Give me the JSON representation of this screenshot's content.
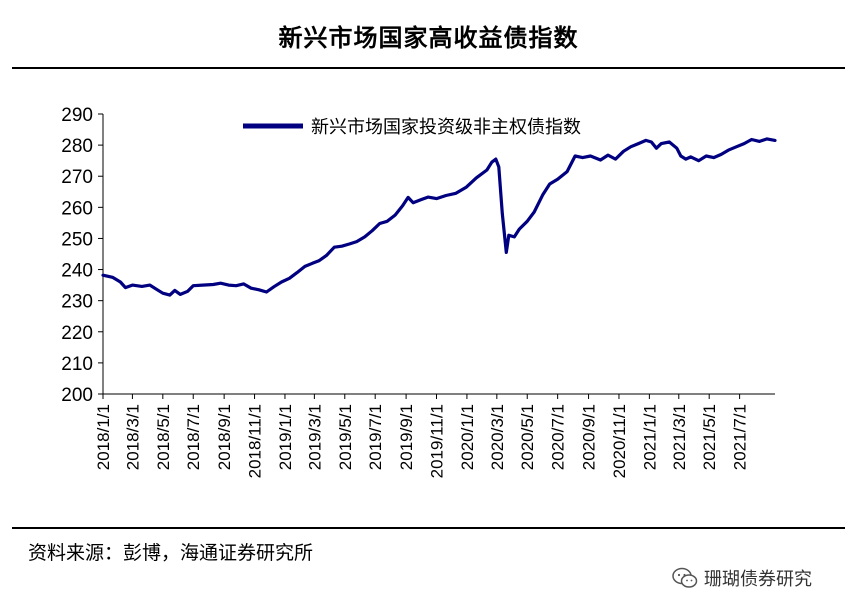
{
  "header": {
    "title": "新兴市场国家高收益债指数"
  },
  "footer": {
    "source": "资料来源：彭博，海通证券研究所"
  },
  "watermark": {
    "text": "珊瑚债券研究",
    "icon": "wechat-icon"
  },
  "chart_data": {
    "type": "line",
    "title": "新兴市场国家高收益债指数",
    "ylim": [
      200,
      290
    ],
    "yticks": [
      200,
      210,
      220,
      230,
      240,
      250,
      260,
      270,
      280,
      290
    ],
    "xlim": [
      "2018-01-01",
      "2021-09-10"
    ],
    "xticks": [
      "2018/1/1",
      "2018/3/1",
      "2018/5/1",
      "2018/7/1",
      "2018/9/1",
      "2018/11/1",
      "2019/1/1",
      "2019/3/1",
      "2019/5/1",
      "2019/7/1",
      "2019/9/1",
      "2019/11/1",
      "2020/1/1",
      "2020/3/1",
      "2020/5/1",
      "2020/7/1",
      "2020/9/1",
      "2020/11/1",
      "2021/1/1",
      "2021/3/1",
      "2021/5/1",
      "2021/7/1"
    ],
    "legend": "top-center",
    "grid": false,
    "colors": {
      "line": "#000080",
      "axis": "#000000"
    },
    "series": [
      {
        "name": "新兴市场国家投资级非主权债指数",
        "points": [
          [
            "2018-01-01",
            238.2
          ],
          [
            "2018-01-20",
            237.5
          ],
          [
            "2018-02-05",
            236.0
          ],
          [
            "2018-02-15",
            234.2
          ],
          [
            "2018-03-01",
            235.0
          ],
          [
            "2018-03-20",
            234.6
          ],
          [
            "2018-04-05",
            235.0
          ],
          [
            "2018-04-20",
            233.5
          ],
          [
            "2018-05-01",
            232.4
          ],
          [
            "2018-05-15",
            231.8
          ],
          [
            "2018-05-25",
            233.3
          ],
          [
            "2018-06-05",
            232.0
          ],
          [
            "2018-06-20",
            233.0
          ],
          [
            "2018-07-01",
            234.8
          ],
          [
            "2018-07-20",
            235.0
          ],
          [
            "2018-08-10",
            235.2
          ],
          [
            "2018-08-25",
            235.6
          ],
          [
            "2018-09-10",
            235.0
          ],
          [
            "2018-09-25",
            234.8
          ],
          [
            "2018-10-10",
            235.4
          ],
          [
            "2018-10-25",
            234.0
          ],
          [
            "2018-11-10",
            233.5
          ],
          [
            "2018-11-25",
            232.8
          ],
          [
            "2018-12-10",
            234.5
          ],
          [
            "2018-12-25",
            236.0
          ],
          [
            "2019-01-10",
            237.2
          ],
          [
            "2019-01-25",
            239.0
          ],
          [
            "2019-02-10",
            241.0
          ],
          [
            "2019-02-25",
            242.0
          ],
          [
            "2019-03-10",
            242.8
          ],
          [
            "2019-03-25",
            244.5
          ],
          [
            "2019-04-10",
            247.2
          ],
          [
            "2019-04-25",
            247.5
          ],
          [
            "2019-05-10",
            248.2
          ],
          [
            "2019-05-25",
            249.0
          ],
          [
            "2019-06-10",
            250.5
          ],
          [
            "2019-06-25",
            252.5
          ],
          [
            "2019-07-10",
            254.8
          ],
          [
            "2019-07-25",
            255.5
          ],
          [
            "2019-08-10",
            257.5
          ],
          [
            "2019-08-25",
            260.5
          ],
          [
            "2019-09-05",
            263.2
          ],
          [
            "2019-09-15",
            261.5
          ],
          [
            "2019-10-01",
            262.5
          ],
          [
            "2019-10-15",
            263.3
          ],
          [
            "2019-11-01",
            262.8
          ],
          [
            "2019-11-20",
            263.8
          ],
          [
            "2019-12-10",
            264.5
          ],
          [
            "2019-12-31",
            266.5
          ],
          [
            "2020-01-20",
            269.5
          ],
          [
            "2020-02-10",
            272.0
          ],
          [
            "2020-02-20",
            274.5
          ],
          [
            "2020-02-28",
            275.5
          ],
          [
            "2020-03-05",
            273.0
          ],
          [
            "2020-03-12",
            258.0
          ],
          [
            "2020-03-20",
            245.5
          ],
          [
            "2020-03-25",
            251.0
          ],
          [
            "2020-04-05",
            250.5
          ],
          [
            "2020-04-15",
            253.0
          ],
          [
            "2020-05-01",
            255.5
          ],
          [
            "2020-05-15",
            258.5
          ],
          [
            "2020-06-01",
            264.0
          ],
          [
            "2020-06-15",
            267.5
          ],
          [
            "2020-07-01",
            269.0
          ],
          [
            "2020-07-20",
            271.5
          ],
          [
            "2020-08-05",
            276.5
          ],
          [
            "2020-08-20",
            276.0
          ],
          [
            "2020-09-05",
            276.5
          ],
          [
            "2020-09-25",
            275.2
          ],
          [
            "2020-10-10",
            276.8
          ],
          [
            "2020-10-25",
            275.5
          ],
          [
            "2020-11-10",
            278.0
          ],
          [
            "2020-11-25",
            279.5
          ],
          [
            "2020-12-10",
            280.5
          ],
          [
            "2020-12-25",
            281.5
          ],
          [
            "2021-01-05",
            281.0
          ],
          [
            "2021-01-15",
            279.0
          ],
          [
            "2021-01-25",
            280.5
          ],
          [
            "2021-02-10",
            281.0
          ],
          [
            "2021-02-25",
            279.0
          ],
          [
            "2021-03-05",
            276.5
          ],
          [
            "2021-03-15",
            275.5
          ],
          [
            "2021-03-25",
            276.2
          ],
          [
            "2021-04-10",
            275.0
          ],
          [
            "2021-04-25",
            276.5
          ],
          [
            "2021-05-10",
            276.0
          ],
          [
            "2021-05-25",
            277.0
          ],
          [
            "2021-06-10",
            278.5
          ],
          [
            "2021-06-25",
            279.5
          ],
          [
            "2021-07-10",
            280.5
          ],
          [
            "2021-07-25",
            281.8
          ],
          [
            "2021-08-10",
            281.2
          ],
          [
            "2021-08-25",
            282.0
          ],
          [
            "2021-09-10",
            281.5
          ]
        ]
      }
    ]
  }
}
